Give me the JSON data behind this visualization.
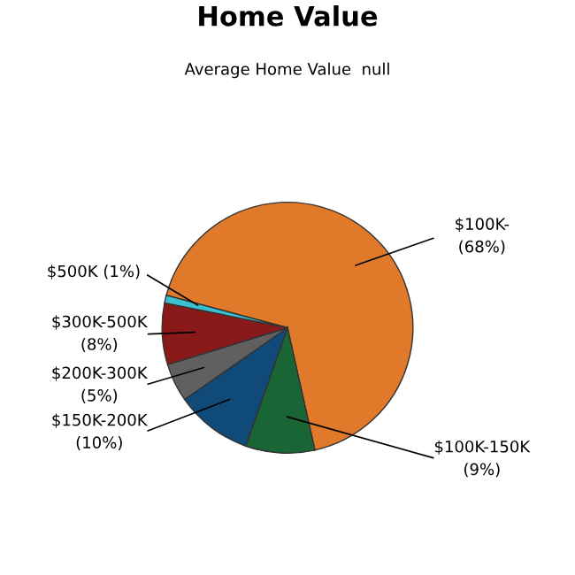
{
  "chart_data": {
    "type": "pie",
    "title": "Home Value",
    "subtitle": "Average Home Value  null",
    "categories": [
      "$100K-",
      "$100K-150K",
      "$150K-200K",
      "$200K-300K",
      "$300K-500K",
      "$500K"
    ],
    "values": [
      68,
      9,
      10,
      5,
      8,
      1
    ],
    "value_labels": [
      "(68%)",
      "(9%)",
      "(10%)",
      "(5%)",
      "(8%)",
      "(1%)"
    ],
    "colors": [
      "#e07a2a",
      "#1a6535",
      "#104a78",
      "#606060",
      "#8a1a1a",
      "#3cc0d0"
    ]
  }
}
